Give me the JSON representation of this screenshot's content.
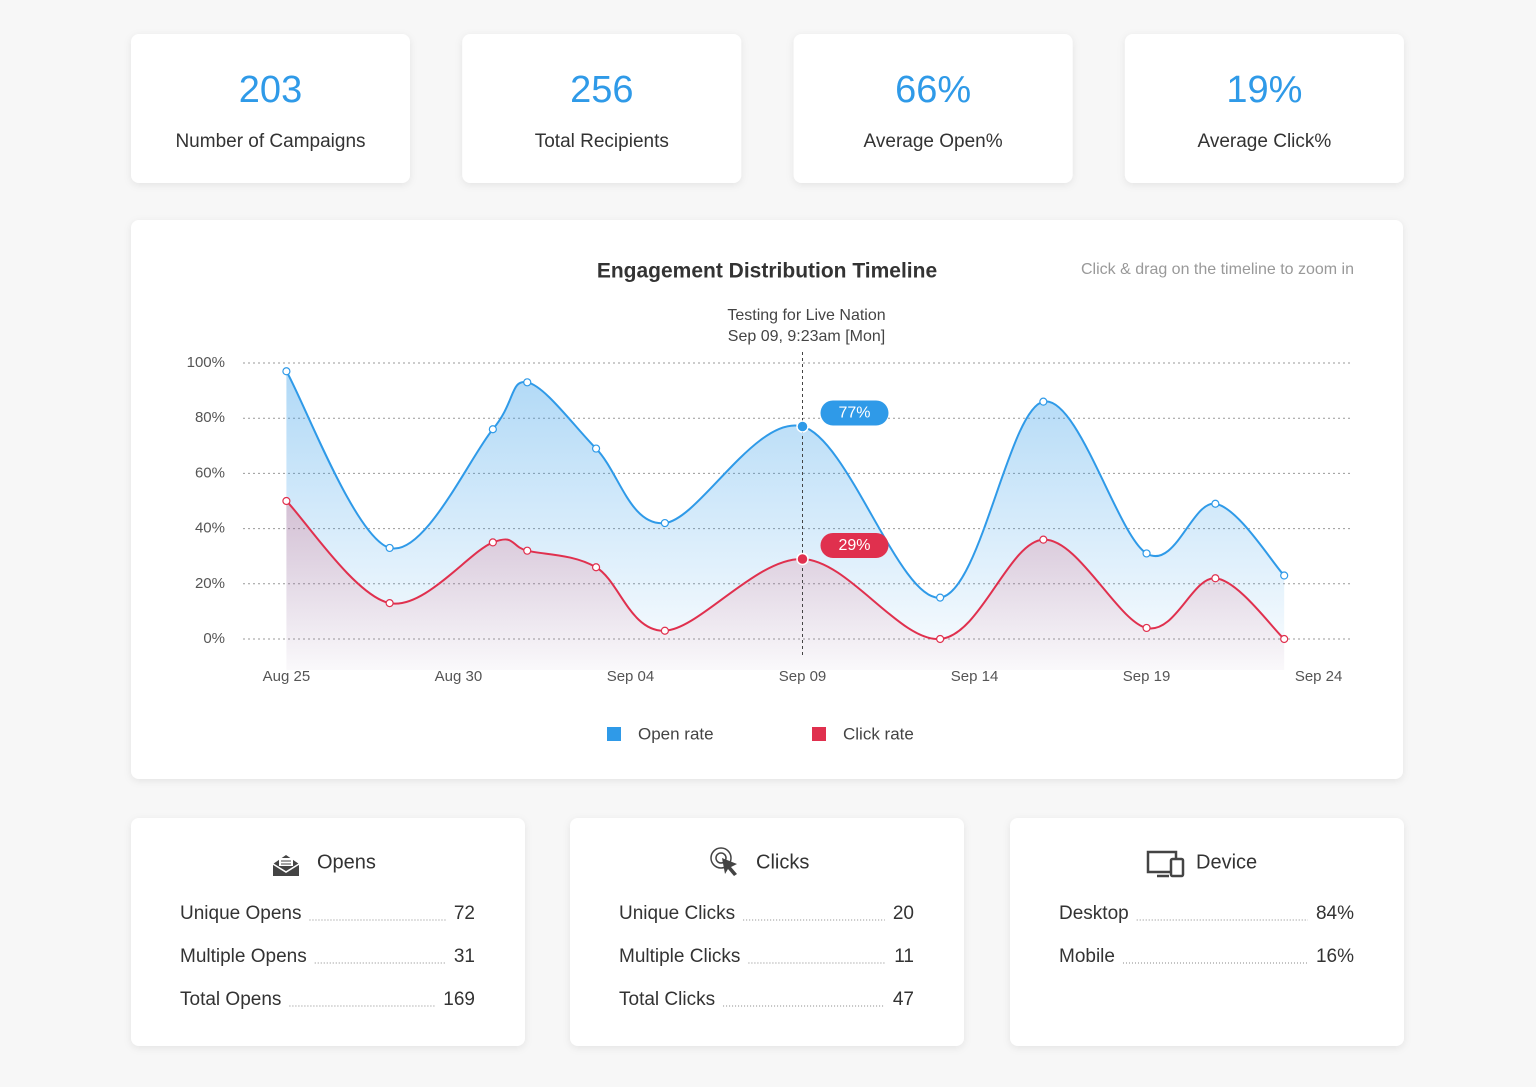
{
  "stats": [
    {
      "value": "203",
      "label": "Number of Campaigns"
    },
    {
      "value": "256",
      "label": "Total Recipients"
    },
    {
      "value": "66%",
      "label": "Average Open%"
    },
    {
      "value": "19%",
      "label": "Average Click%"
    }
  ],
  "chart_data": {
    "type": "line",
    "title": "Engagement Distribution Timeline",
    "hint": "Click & drag on the timeline to zoom in",
    "x": [
      "Aug 25",
      "Aug 28",
      "Aug 31",
      "Sep 01",
      "Sep 03",
      "Sep 05",
      "Sep 09",
      "Sep 13",
      "Sep 16",
      "Sep 19",
      "Sep 21",
      "Sep 23"
    ],
    "series": [
      {
        "name": "Open rate",
        "color": "#2f9ae8",
        "values": [
          97,
          33,
          76,
          93,
          69,
          42,
          77,
          15,
          86,
          31,
          49,
          23
        ]
      },
      {
        "name": "Click rate",
        "color": "#e0304e",
        "values": [
          50,
          13,
          35,
          32,
          26,
          3,
          29,
          0,
          36,
          4,
          22,
          0
        ]
      }
    ],
    "xlim": [
      "Aug 24",
      "Sep 25"
    ],
    "xticks": [
      "Aug 25",
      "Aug 30",
      "Sep 04",
      "Sep 09",
      "Sep 14",
      "Sep 19",
      "Sep 24"
    ],
    "ylim": [
      0,
      100
    ],
    "yticks": [
      {
        "value": 0,
        "label": "0%"
      },
      {
        "value": 20,
        "label": "20%"
      },
      {
        "value": 40,
        "label": "40%"
      },
      {
        "value": 60,
        "label": "60%"
      },
      {
        "value": 80,
        "label": "80%"
      },
      {
        "value": 100,
        "label": "100%"
      }
    ],
    "grid": true,
    "legend": "bottom",
    "hover": {
      "x": "Sep 09",
      "title": "Testing for Live Nation",
      "subtitle": "Sep 09, 9:23am [Mon]",
      "labels": [
        "77%",
        "29%"
      ]
    }
  },
  "panels": [
    {
      "title": "Opens",
      "rows": [
        {
          "label": "Unique Opens",
          "value": "72"
        },
        {
          "label": "Multiple Opens",
          "value": "31"
        },
        {
          "label": "Total Opens",
          "value": "169"
        }
      ]
    },
    {
      "title": "Clicks",
      "rows": [
        {
          "label": "Unique Clicks",
          "value": "20"
        },
        {
          "label": "Multiple Clicks",
          "value": "11"
        },
        {
          "label": "Total Clicks",
          "value": "47"
        }
      ]
    },
    {
      "title": "Device",
      "rows": [
        {
          "label": "Desktop",
          "value": "84%"
        },
        {
          "label": "Mobile",
          "value": "16%"
        }
      ]
    }
  ]
}
